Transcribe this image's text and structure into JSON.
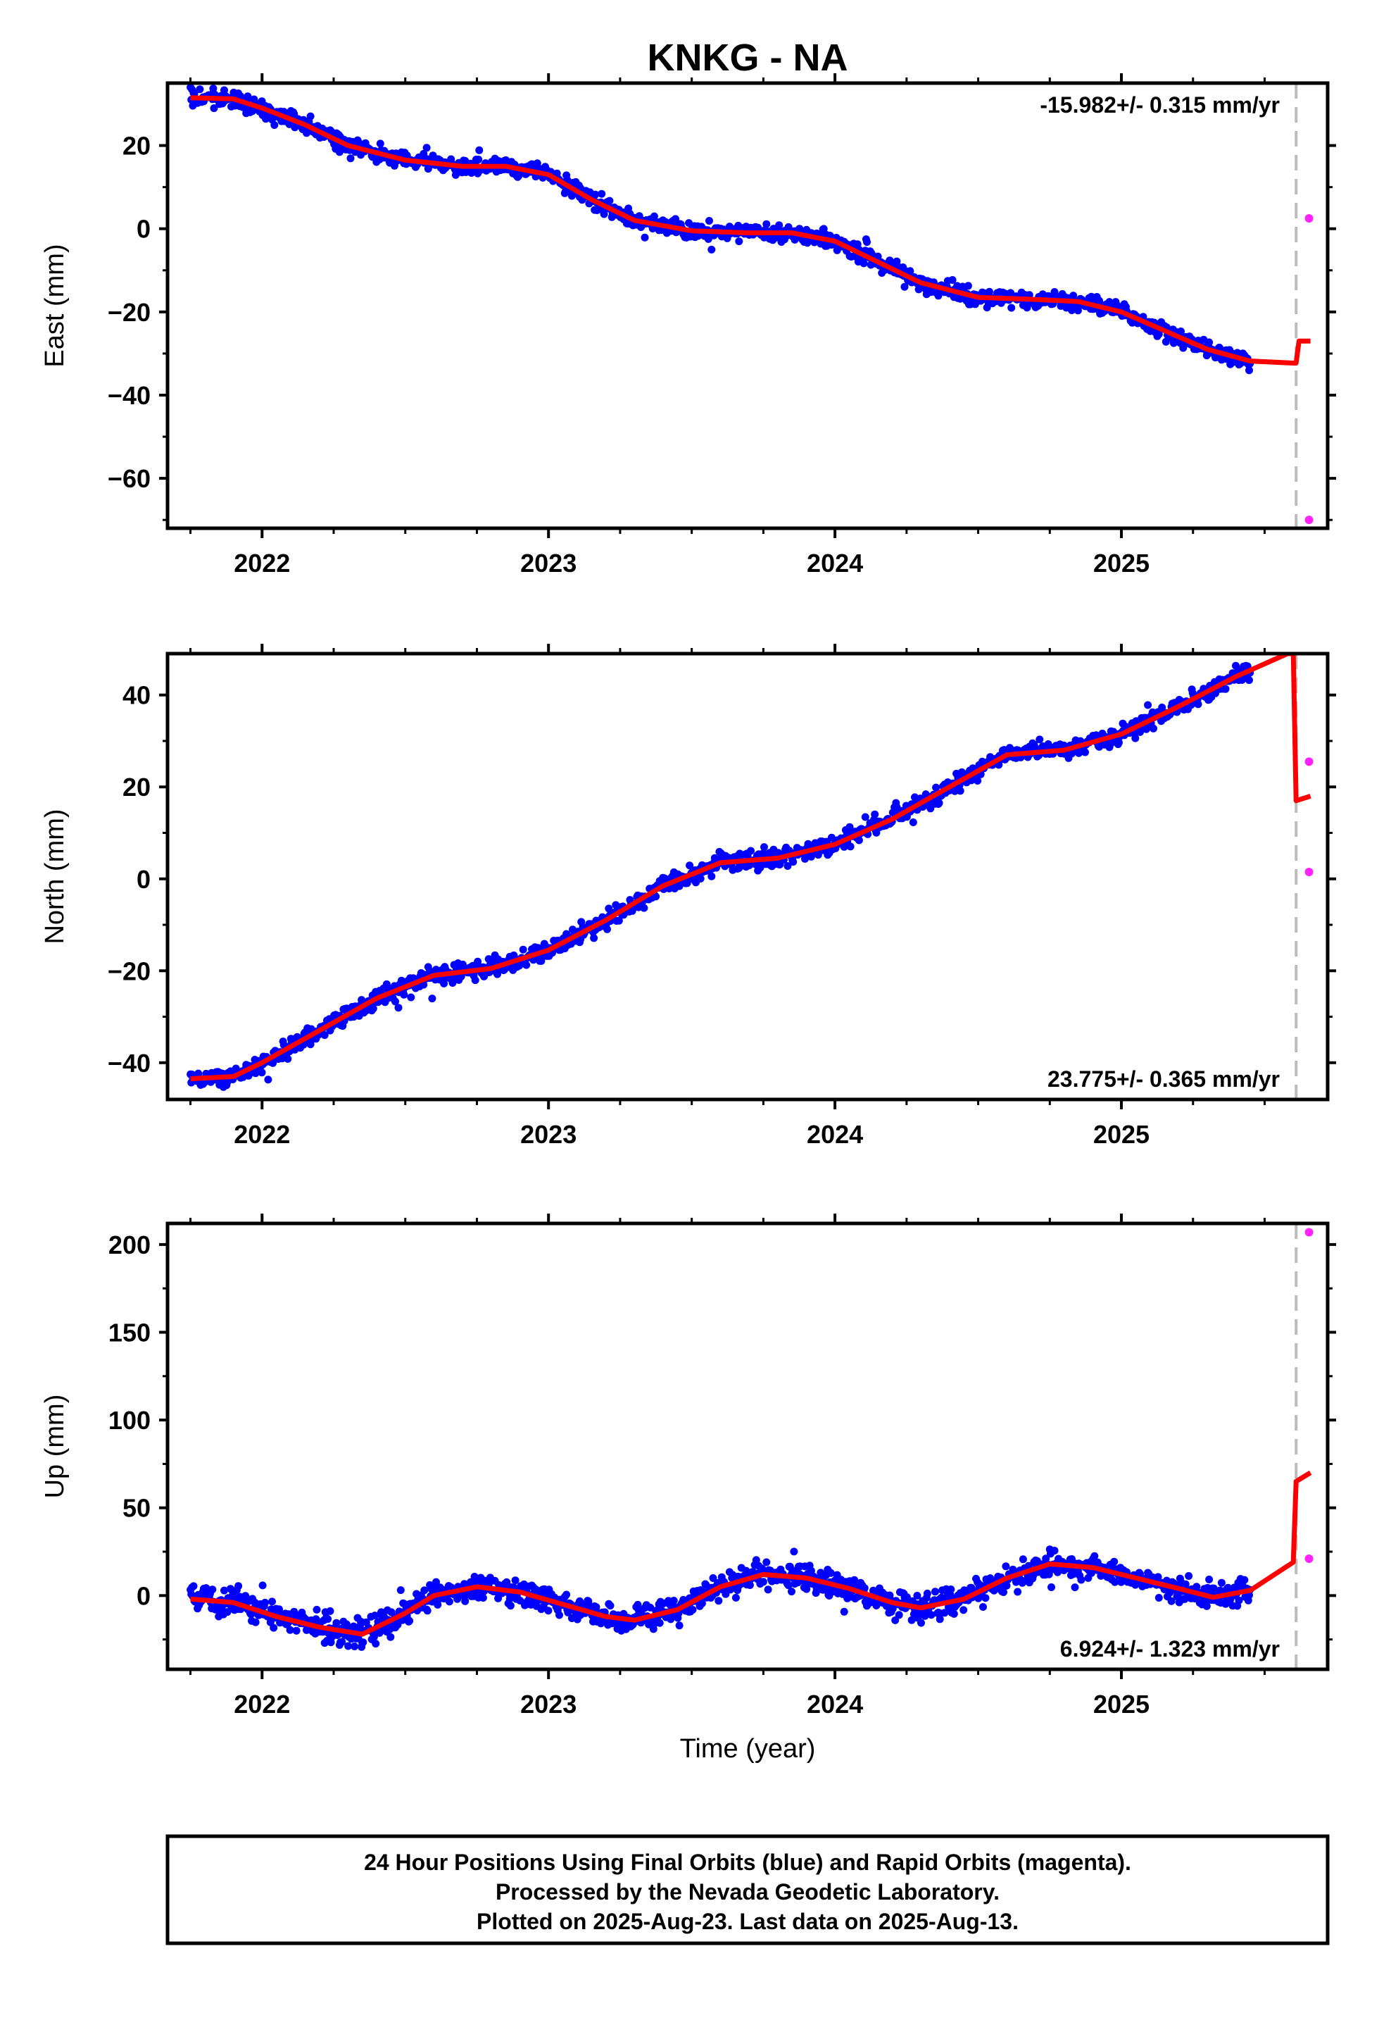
{
  "title": "KNKG - NA",
  "colors": {
    "final_points": "#0000ff",
    "rapid_points": "#ff22ff",
    "model": "#ff0000",
    "last_data_line": "#bbbbbb",
    "frame": "#000000"
  },
  "chart_data": [
    {
      "type": "scatter",
      "name": "east",
      "ylabel": "East (mm)",
      "xlabel": "",
      "xlim": [
        2021.67,
        2025.72
      ],
      "ylim": [
        -72,
        35
      ],
      "yticks": [
        20,
        0,
        -20,
        -40,
        -60
      ],
      "xticks": [
        2022,
        2023,
        2024,
        2025
      ],
      "rate_label": "-15.982+/- 0.315 mm/yr",
      "rate_position": "top-right",
      "last_data_x": 2025.61,
      "model_points": [
        [
          2021.75,
          31.5
        ],
        [
          2021.9,
          31.2
        ],
        [
          2022.0,
          29.0
        ],
        [
          2022.15,
          25.0
        ],
        [
          2022.3,
          20.0
        ],
        [
          2022.5,
          16.5
        ],
        [
          2022.7,
          15.0
        ],
        [
          2022.85,
          15.0
        ],
        [
          2023.0,
          13.0
        ],
        [
          2023.15,
          7.0
        ],
        [
          2023.3,
          2.0
        ],
        [
          2023.5,
          -0.5
        ],
        [
          2023.7,
          -1.0
        ],
        [
          2023.85,
          -1.0
        ],
        [
          2024.0,
          -3.0
        ],
        [
          2024.15,
          -8.0
        ],
        [
          2024.3,
          -13.0
        ],
        [
          2024.5,
          -16.5
        ],
        [
          2024.7,
          -17.0
        ],
        [
          2024.85,
          -17.5
        ],
        [
          2025.0,
          -20.0
        ],
        [
          2025.15,
          -24.5
        ],
        [
          2025.3,
          -29.0
        ],
        [
          2025.45,
          -31.8
        ],
        [
          2025.6,
          -32.3
        ],
        [
          2025.61,
          -32.3
        ],
        [
          2025.62,
          -27.0
        ],
        [
          2025.66,
          -27.0
        ]
      ],
      "rapid_points": [
        [
          2025.655,
          2.5
        ],
        [
          2025.655,
          -70.0
        ]
      ],
      "series_seed": 1
    },
    {
      "type": "scatter",
      "name": "north",
      "ylabel": "North (mm)",
      "xlabel": "",
      "xlim": [
        2021.67,
        2025.72
      ],
      "ylim": [
        -48,
        49
      ],
      "yticks": [
        40,
        20,
        0,
        -20,
        -40
      ],
      "xticks": [
        2022,
        2023,
        2024,
        2025
      ],
      "rate_label": "23.775+/- 0.365 mm/yr",
      "rate_position": "bottom-right",
      "last_data_x": 2025.61,
      "model_points": [
        [
          2021.75,
          -43.5
        ],
        [
          2021.9,
          -43.0
        ],
        [
          2022.0,
          -40.0
        ],
        [
          2022.2,
          -33.0
        ],
        [
          2022.4,
          -26.0
        ],
        [
          2022.6,
          -21.0
        ],
        [
          2022.8,
          -19.5
        ],
        [
          2023.0,
          -15.5
        ],
        [
          2023.2,
          -9.0
        ],
        [
          2023.4,
          -1.5
        ],
        [
          2023.6,
          3.5
        ],
        [
          2023.8,
          4.5
        ],
        [
          2024.0,
          7.5
        ],
        [
          2024.2,
          13.0
        ],
        [
          2024.4,
          20.0
        ],
        [
          2024.6,
          27.0
        ],
        [
          2024.8,
          28.0
        ],
        [
          2025.0,
          31.5
        ],
        [
          2025.2,
          37.5
        ],
        [
          2025.4,
          44.0
        ],
        [
          2025.58,
          49.0
        ],
        [
          2025.6,
          49.0
        ],
        [
          2025.61,
          17.0
        ],
        [
          2025.66,
          18.0
        ]
      ],
      "rapid_points": [
        [
          2025.655,
          25.5
        ],
        [
          2025.655,
          1.5
        ]
      ],
      "series_seed": 2
    },
    {
      "type": "scatter",
      "name": "up",
      "ylabel": "Up (mm)",
      "xlabel": "Time (year)",
      "xlim": [
        2021.67,
        2025.72
      ],
      "ylim": [
        -42,
        212
      ],
      "yticks": [
        200,
        150,
        100,
        50,
        0
      ],
      "xticks": [
        2022,
        2023,
        2024,
        2025
      ],
      "rate_label": "6.924+/- 1.323 mm/yr",
      "rate_position": "bottom-right",
      "last_data_x": 2025.61,
      "model_points": [
        [
          2021.75,
          -2.0
        ],
        [
          2021.9,
          -4.0
        ],
        [
          2022.05,
          -12.0
        ],
        [
          2022.2,
          -18.0
        ],
        [
          2022.35,
          -22.0
        ],
        [
          2022.5,
          -10.0
        ],
        [
          2022.6,
          0.0
        ],
        [
          2022.75,
          5.0
        ],
        [
          2022.9,
          2.0
        ],
        [
          2023.05,
          -5.0
        ],
        [
          2023.2,
          -12.0
        ],
        [
          2023.3,
          -14.0
        ],
        [
          2023.45,
          -8.0
        ],
        [
          2023.6,
          5.0
        ],
        [
          2023.75,
          12.0
        ],
        [
          2023.9,
          10.0
        ],
        [
          2024.05,
          4.0
        ],
        [
          2024.2,
          -4.0
        ],
        [
          2024.3,
          -7.0
        ],
        [
          2024.45,
          -2.0
        ],
        [
          2024.6,
          10.0
        ],
        [
          2024.75,
          18.0
        ],
        [
          2024.9,
          16.0
        ],
        [
          2025.05,
          10.0
        ],
        [
          2025.2,
          4.0
        ],
        [
          2025.32,
          -1.0
        ],
        [
          2025.45,
          3.0
        ],
        [
          2025.6,
          19.0
        ],
        [
          2025.61,
          65.0
        ],
        [
          2025.66,
          70.0
        ]
      ],
      "rapid_points": [
        [
          2025.655,
          207.0
        ],
        [
          2025.655,
          21.0
        ]
      ],
      "series_seed": 3
    }
  ],
  "footer": {
    "line1": "24 Hour Positions Using Final Orbits (blue) and Rapid Orbits (magenta).",
    "line2": "Processed by the Nevada Geodetic Laboratory.",
    "line3": "Plotted on 2025-Aug-23. Last data on 2025-Aug-13."
  }
}
